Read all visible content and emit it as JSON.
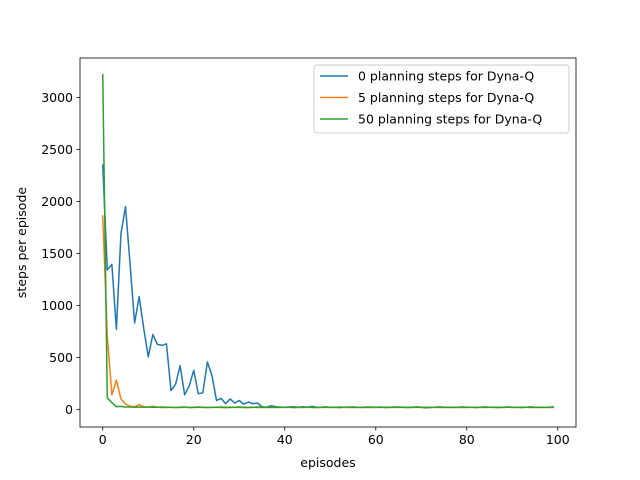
{
  "chart_data": {
    "type": "line",
    "xlabel": "episodes",
    "ylabel": "steps per episode",
    "xlim": [
      -5,
      104
    ],
    "ylim": [
      -170,
      3380
    ],
    "xticks": [
      0,
      20,
      40,
      60,
      80,
      100
    ],
    "yticks": [
      0,
      500,
      1000,
      1500,
      2000,
      2500,
      3000
    ],
    "grid": false,
    "legend_position": "upper right",
    "series": [
      {
        "name": "0 planning steps for Dyna-Q",
        "color": "#1f77b4",
        "x": [
          0,
          1,
          2,
          3,
          4,
          5,
          6,
          7,
          8,
          9,
          10,
          11,
          12,
          13,
          14,
          15,
          16,
          17,
          18,
          19,
          20,
          21,
          22,
          23,
          24,
          25,
          26,
          27,
          28,
          29,
          30,
          31,
          32,
          33,
          34,
          35,
          36,
          37,
          38,
          39,
          40,
          41,
          42,
          43,
          44,
          45,
          46,
          47,
          48,
          49,
          50,
          51,
          52,
          53,
          54,
          55,
          56,
          57,
          58,
          59,
          60,
          61,
          62,
          63,
          64,
          65,
          66,
          67,
          68,
          69,
          70,
          71,
          72,
          73,
          74,
          75,
          76,
          77,
          78,
          79,
          80,
          81,
          82,
          83,
          84,
          85,
          86,
          87,
          88,
          89,
          90,
          91,
          92,
          93,
          94,
          95,
          96,
          97,
          98,
          99
        ],
        "values": [
          2350,
          1340,
          1395,
          770,
          1690,
          1950,
          1400,
          830,
          1085,
          780,
          505,
          720,
          625,
          615,
          630,
          180,
          240,
          420,
          140,
          225,
          375,
          150,
          160,
          455,
          325,
          85,
          105,
          55,
          100,
          60,
          85,
          50,
          70,
          55,
          60,
          25,
          20,
          35,
          25,
          20,
          20,
          22,
          25,
          20,
          25,
          20,
          28,
          20,
          20,
          22,
          20,
          20,
          22,
          20,
          20,
          22,
          20,
          20,
          22,
          20,
          20,
          22,
          20,
          20,
          20,
          22,
          20,
          20,
          20,
          22,
          20,
          20,
          20,
          20,
          22,
          20,
          20,
          20,
          20,
          22,
          20,
          20,
          20,
          20,
          22,
          20,
          20,
          20,
          20,
          22,
          20,
          20,
          20,
          20,
          22,
          20,
          20,
          20,
          20,
          22
        ]
      },
      {
        "name": "5 planning steps for Dyna-Q",
        "color": "#ff7f0e",
        "x": [
          0,
          1,
          2,
          3,
          4,
          5,
          6,
          7,
          8,
          9,
          10,
          11,
          12,
          13,
          14,
          15,
          16,
          17,
          18,
          19,
          20,
          21,
          22,
          23,
          24,
          25,
          26,
          27,
          28,
          29,
          30,
          31,
          32,
          33,
          34,
          35,
          36,
          37,
          38,
          39,
          40,
          41,
          42,
          43,
          44,
          45,
          46,
          47,
          48,
          49,
          50,
          51,
          52,
          53,
          54,
          55,
          56,
          57,
          58,
          59,
          60,
          61,
          62,
          63,
          64,
          65,
          66,
          67,
          68,
          69,
          70,
          71,
          72,
          73,
          74,
          75,
          76,
          77,
          78,
          79,
          80,
          81,
          82,
          83,
          84,
          85,
          86,
          87,
          88,
          89,
          90,
          91,
          92,
          93,
          94,
          95,
          96,
          97,
          98,
          99
        ],
        "values": [
          1860,
          700,
          140,
          280,
          100,
          50,
          30,
          25,
          45,
          25,
          20,
          30,
          20,
          18,
          18,
          20,
          18,
          18,
          20,
          18,
          18,
          20,
          18,
          18,
          18,
          20,
          18,
          18,
          18,
          20,
          18,
          18,
          18,
          20,
          18,
          18,
          18,
          20,
          18,
          18,
          18,
          20,
          18,
          18,
          18,
          20,
          18,
          18,
          18,
          20,
          18,
          18,
          18,
          20,
          18,
          18,
          18,
          20,
          18,
          18,
          18,
          20,
          18,
          18,
          18,
          20,
          18,
          18,
          18,
          20,
          18,
          18,
          18,
          20,
          18,
          18,
          18,
          20,
          18,
          18,
          18,
          20,
          18,
          18,
          18,
          20,
          18,
          18,
          18,
          20,
          18,
          18,
          18,
          20,
          18,
          18,
          18,
          20,
          18,
          18
        ]
      },
      {
        "name": "50 planning steps for Dyna-Q",
        "color": "#2ca02c",
        "x": [
          0,
          1,
          2,
          3,
          4,
          5,
          6,
          7,
          8,
          9,
          10,
          11,
          12,
          13,
          14,
          15,
          16,
          17,
          18,
          19,
          20,
          21,
          22,
          23,
          24,
          25,
          26,
          27,
          28,
          29,
          30,
          31,
          32,
          33,
          34,
          35,
          36,
          37,
          38,
          39,
          40,
          41,
          42,
          43,
          44,
          45,
          46,
          47,
          48,
          49,
          50,
          51,
          52,
          53,
          54,
          55,
          56,
          57,
          58,
          59,
          60,
          61,
          62,
          63,
          64,
          65,
          66,
          67,
          68,
          69,
          70,
          71,
          72,
          73,
          74,
          75,
          76,
          77,
          78,
          79,
          80,
          81,
          82,
          83,
          84,
          85,
          86,
          87,
          88,
          89,
          90,
          91,
          92,
          93,
          94,
          95,
          96,
          97,
          98,
          99
        ],
        "values": [
          3220,
          110,
          65,
          25,
          28,
          22,
          22,
          20,
          22,
          20,
          22,
          20,
          20,
          22,
          20,
          20,
          18,
          20,
          22,
          18,
          20,
          22,
          20,
          18,
          20,
          20,
          22,
          18,
          20,
          20,
          22,
          20,
          18,
          20,
          22,
          20,
          20,
          18,
          20,
          22,
          20,
          20,
          18,
          20,
          22,
          20,
          20,
          18,
          20,
          22,
          20,
          20,
          18,
          20,
          22,
          20,
          20,
          18,
          20,
          22,
          20,
          20,
          18,
          20,
          22,
          20,
          20,
          18,
          20,
          22,
          20,
          14,
          18,
          20,
          22,
          20,
          20,
          18,
          20,
          22,
          20,
          20,
          18,
          20,
          22,
          20,
          20,
          18,
          20,
          22,
          20,
          20,
          18,
          20,
          22,
          20,
          20,
          18,
          20,
          22
        ]
      }
    ]
  }
}
